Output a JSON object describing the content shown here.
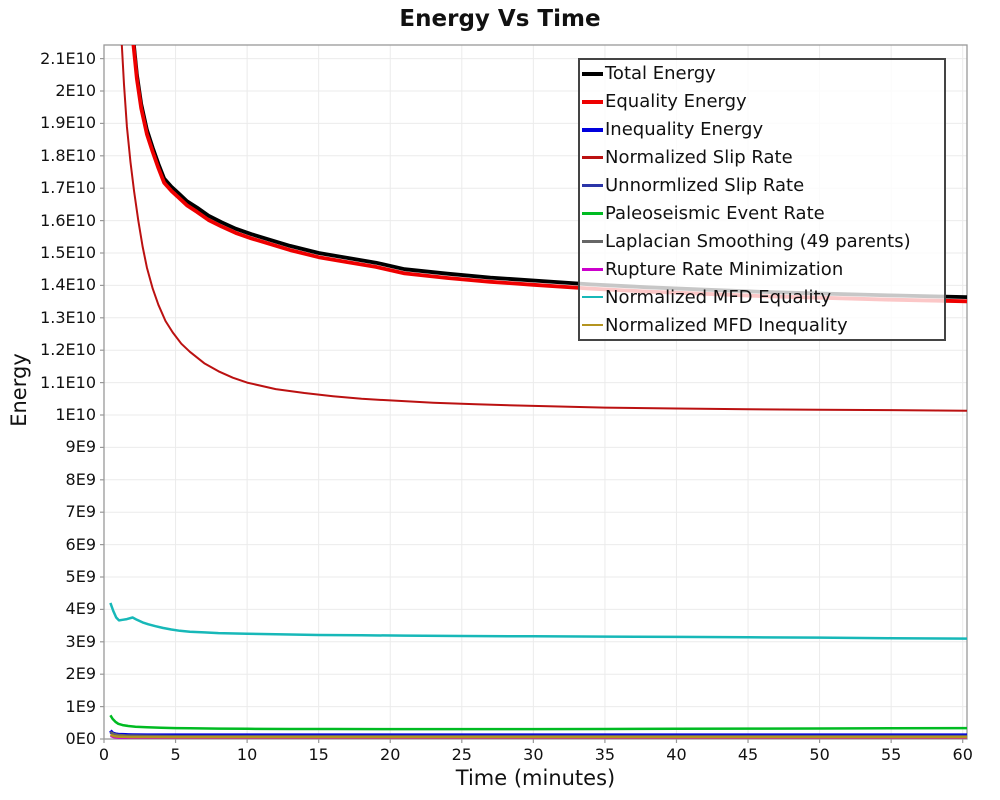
{
  "chart_data": {
    "type": "line",
    "title": "Energy Vs Time",
    "xlabel": "Time (minutes)",
    "ylabel": "Energy",
    "xlim": [
      0,
      60.3
    ],
    "ylim_e9": [
      0,
      21.42
    ],
    "y_unit": "1E9",
    "grid": true,
    "legend_position": "upper-right-inside",
    "x_ticks": [
      0,
      5,
      10,
      15,
      20,
      25,
      30,
      35,
      40,
      45,
      50,
      55,
      60
    ],
    "x_tick_labels": [
      "0",
      "5",
      "10",
      "15",
      "20",
      "25",
      "30",
      "35",
      "40",
      "45",
      "50",
      "55",
      "60"
    ],
    "y_tick_values_e9": [
      0,
      1,
      2,
      3,
      4,
      5,
      6,
      7,
      8,
      9,
      10,
      11,
      12,
      13,
      14,
      15,
      16,
      17,
      18,
      19,
      20,
      21
    ],
    "y_tick_labels": [
      "0E0",
      "1E9",
      "2E9",
      "3E9",
      "4E9",
      "5E9",
      "6E9",
      "7E9",
      "8E9",
      "9E9",
      "1E10",
      "1.1E10",
      "1.2E10",
      "1.3E10",
      "1.4E10",
      "1.5E10",
      "1.6E10",
      "1.7E10",
      "1.8E10",
      "1.9E10",
      "2E10",
      "2.1E10"
    ],
    "series": [
      {
        "name": "Total Energy",
        "color": "#000000",
        "lw": 3.8,
        "x": [
          2.05,
          2.3,
          2.6,
          3.0,
          3.4,
          3.8,
          4.2,
          4.7,
          5.2,
          5.8,
          6.5,
          7.3,
          8.2,
          9.2,
          10.3,
          11.5,
          13,
          15,
          17,
          19,
          21,
          24,
          27,
          30,
          34,
          38,
          42,
          46,
          50,
          55,
          60.3
        ],
        "y_e9": [
          21.6,
          20.5,
          19.6,
          18.8,
          18.25,
          17.75,
          17.3,
          17.05,
          16.85,
          16.6,
          16.4,
          16.15,
          15.95,
          15.75,
          15.58,
          15.42,
          15.22,
          15.0,
          14.85,
          14.7,
          14.5,
          14.36,
          14.24,
          14.15,
          14.03,
          13.94,
          13.87,
          13.8,
          13.75,
          13.69,
          13.64
        ]
      },
      {
        "name": "Equality Energy",
        "color": "#ee0000",
        "lw": 3.8,
        "x": [
          2.05,
          2.3,
          2.6,
          3.0,
          3.4,
          3.8,
          4.2,
          4.7,
          5.2,
          5.8,
          6.5,
          7.3,
          8.2,
          9.2,
          10.3,
          11.5,
          13,
          15,
          17,
          19,
          21,
          24,
          27,
          30,
          34,
          38,
          42,
          46,
          50,
          55,
          60.3
        ],
        "y_e9": [
          21.47,
          20.37,
          19.47,
          18.67,
          18.12,
          17.62,
          17.17,
          16.92,
          16.72,
          16.47,
          16.27,
          16.02,
          15.82,
          15.62,
          15.45,
          15.29,
          15.09,
          14.87,
          14.72,
          14.57,
          14.37,
          14.23,
          14.11,
          14.02,
          13.9,
          13.81,
          13.74,
          13.67,
          13.62,
          13.56,
          13.51
        ]
      },
      {
        "name": "Inequality Energy",
        "color": "#0000dd",
        "lw": 3.5,
        "x": [
          0.45,
          0.6,
          0.8,
          1.0,
          1.5,
          2,
          3,
          5,
          10,
          20,
          30,
          40,
          50,
          60.3
        ],
        "y_e9": [
          0.26,
          0.18,
          0.15,
          0.14,
          0.13,
          0.125,
          0.12,
          0.12,
          0.12,
          0.12,
          0.12,
          0.12,
          0.12,
          0.12
        ]
      },
      {
        "name": "Normalized Slip Rate",
        "color": "#bb1111",
        "lw": 2,
        "x": [
          1.22,
          1.4,
          1.6,
          1.85,
          2.1,
          2.4,
          2.7,
          3.0,
          3.4,
          3.8,
          4.3,
          4.8,
          5.4,
          6,
          7,
          8,
          9,
          10,
          12,
          14,
          16,
          18,
          20,
          23,
          26,
          30,
          35,
          40,
          45,
          50,
          55,
          60.3
        ],
        "y_e9": [
          21.6,
          20.2,
          18.9,
          17.8,
          16.9,
          16.0,
          15.2,
          14.55,
          13.9,
          13.4,
          12.9,
          12.55,
          12.2,
          11.95,
          11.6,
          11.35,
          11.15,
          11.0,
          10.8,
          10.68,
          10.58,
          10.5,
          10.45,
          10.38,
          10.33,
          10.28,
          10.23,
          10.2,
          10.18,
          10.16,
          10.15,
          10.13
        ]
      },
      {
        "name": "Unnormlized Slip Rate",
        "color": "#2b35a8",
        "lw": 2,
        "x": [
          0.45,
          0.6,
          0.8,
          1,
          1.5,
          2,
          3,
          5,
          10,
          20,
          30,
          40,
          50,
          60.3
        ],
        "y_e9": [
          0.2,
          0.12,
          0.08,
          0.06,
          0.04,
          0.03,
          0.025,
          0.02,
          0.02,
          0.02,
          0.02,
          0.02,
          0.02,
          0.02
        ]
      },
      {
        "name": "Paleoseismic Event Rate",
        "color": "#00bb22",
        "lw": 2.5,
        "x": [
          0.45,
          0.6,
          0.8,
          1.0,
          1.3,
          1.7,
          2.2,
          3,
          4,
          5,
          6,
          8,
          10,
          13,
          16,
          20,
          25,
          30,
          35,
          40,
          45,
          50,
          55,
          60.3
        ],
        "y_e9": [
          0.73,
          0.62,
          0.53,
          0.47,
          0.43,
          0.4,
          0.38,
          0.36,
          0.345,
          0.335,
          0.33,
          0.32,
          0.315,
          0.31,
          0.31,
          0.305,
          0.305,
          0.305,
          0.31,
          0.315,
          0.32,
          0.325,
          0.33,
          0.335
        ]
      },
      {
        "name": "Laplacian Smoothing (49 parents)",
        "color": "#666666",
        "lw": 2,
        "x": [
          0.45,
          0.7,
          1,
          1.5,
          2,
          3,
          5,
          10,
          20,
          30,
          40,
          50,
          60.3
        ],
        "y_e9": [
          0.22,
          0.16,
          0.13,
          0.115,
          0.11,
          0.105,
          0.095,
          0.095,
          0.095,
          0.095,
          0.095,
          0.095,
          0.095
        ]
      },
      {
        "name": "Rupture Rate Minimization",
        "color": "#cc00cc",
        "lw": 2,
        "x": [
          0.45,
          0.7,
          1,
          2,
          3,
          5,
          10,
          20,
          30,
          40,
          50,
          60.3
        ],
        "y_e9": [
          0.09,
          0.05,
          0.035,
          0.03,
          0.03,
          0.03,
          0.03,
          0.03,
          0.03,
          0.03,
          0.03,
          0.03
        ]
      },
      {
        "name": "Normalized MFD Equality",
        "color": "#17b8b8",
        "lw": 2.5,
        "x": [
          0.45,
          0.65,
          0.85,
          1.05,
          1.3,
          1.6,
          2.0,
          2.3,
          2.7,
          3.1,
          3.6,
          4.1,
          4.7,
          5.3,
          6,
          7,
          8,
          10,
          12,
          15,
          18,
          21,
          25,
          30,
          35,
          40,
          45,
          50,
          55,
          60.3
        ],
        "y_e9": [
          4.2,
          3.95,
          3.75,
          3.66,
          3.68,
          3.7,
          3.75,
          3.68,
          3.6,
          3.54,
          3.48,
          3.43,
          3.38,
          3.34,
          3.31,
          3.29,
          3.27,
          3.25,
          3.23,
          3.21,
          3.2,
          3.19,
          3.18,
          3.17,
          3.16,
          3.15,
          3.14,
          3.13,
          3.11,
          3.1
        ]
      },
      {
        "name": "Normalized MFD Inequality",
        "color": "#b4941f",
        "lw": 2.5,
        "x": [
          0.45,
          0.7,
          1,
          1.5,
          2,
          3,
          5,
          10,
          20,
          30,
          40,
          50,
          60.3
        ],
        "y_e9": [
          0.13,
          0.09,
          0.075,
          0.065,
          0.06,
          0.058,
          0.055,
          0.055,
          0.055,
          0.055,
          0.055,
          0.055,
          0.055
        ]
      }
    ],
    "style": {
      "grid_color": "#ebebeb",
      "axis_border_color": "#999999",
      "tick_color": "#999999",
      "legend_border_color": "#444444",
      "text_color": "#111111"
    }
  }
}
